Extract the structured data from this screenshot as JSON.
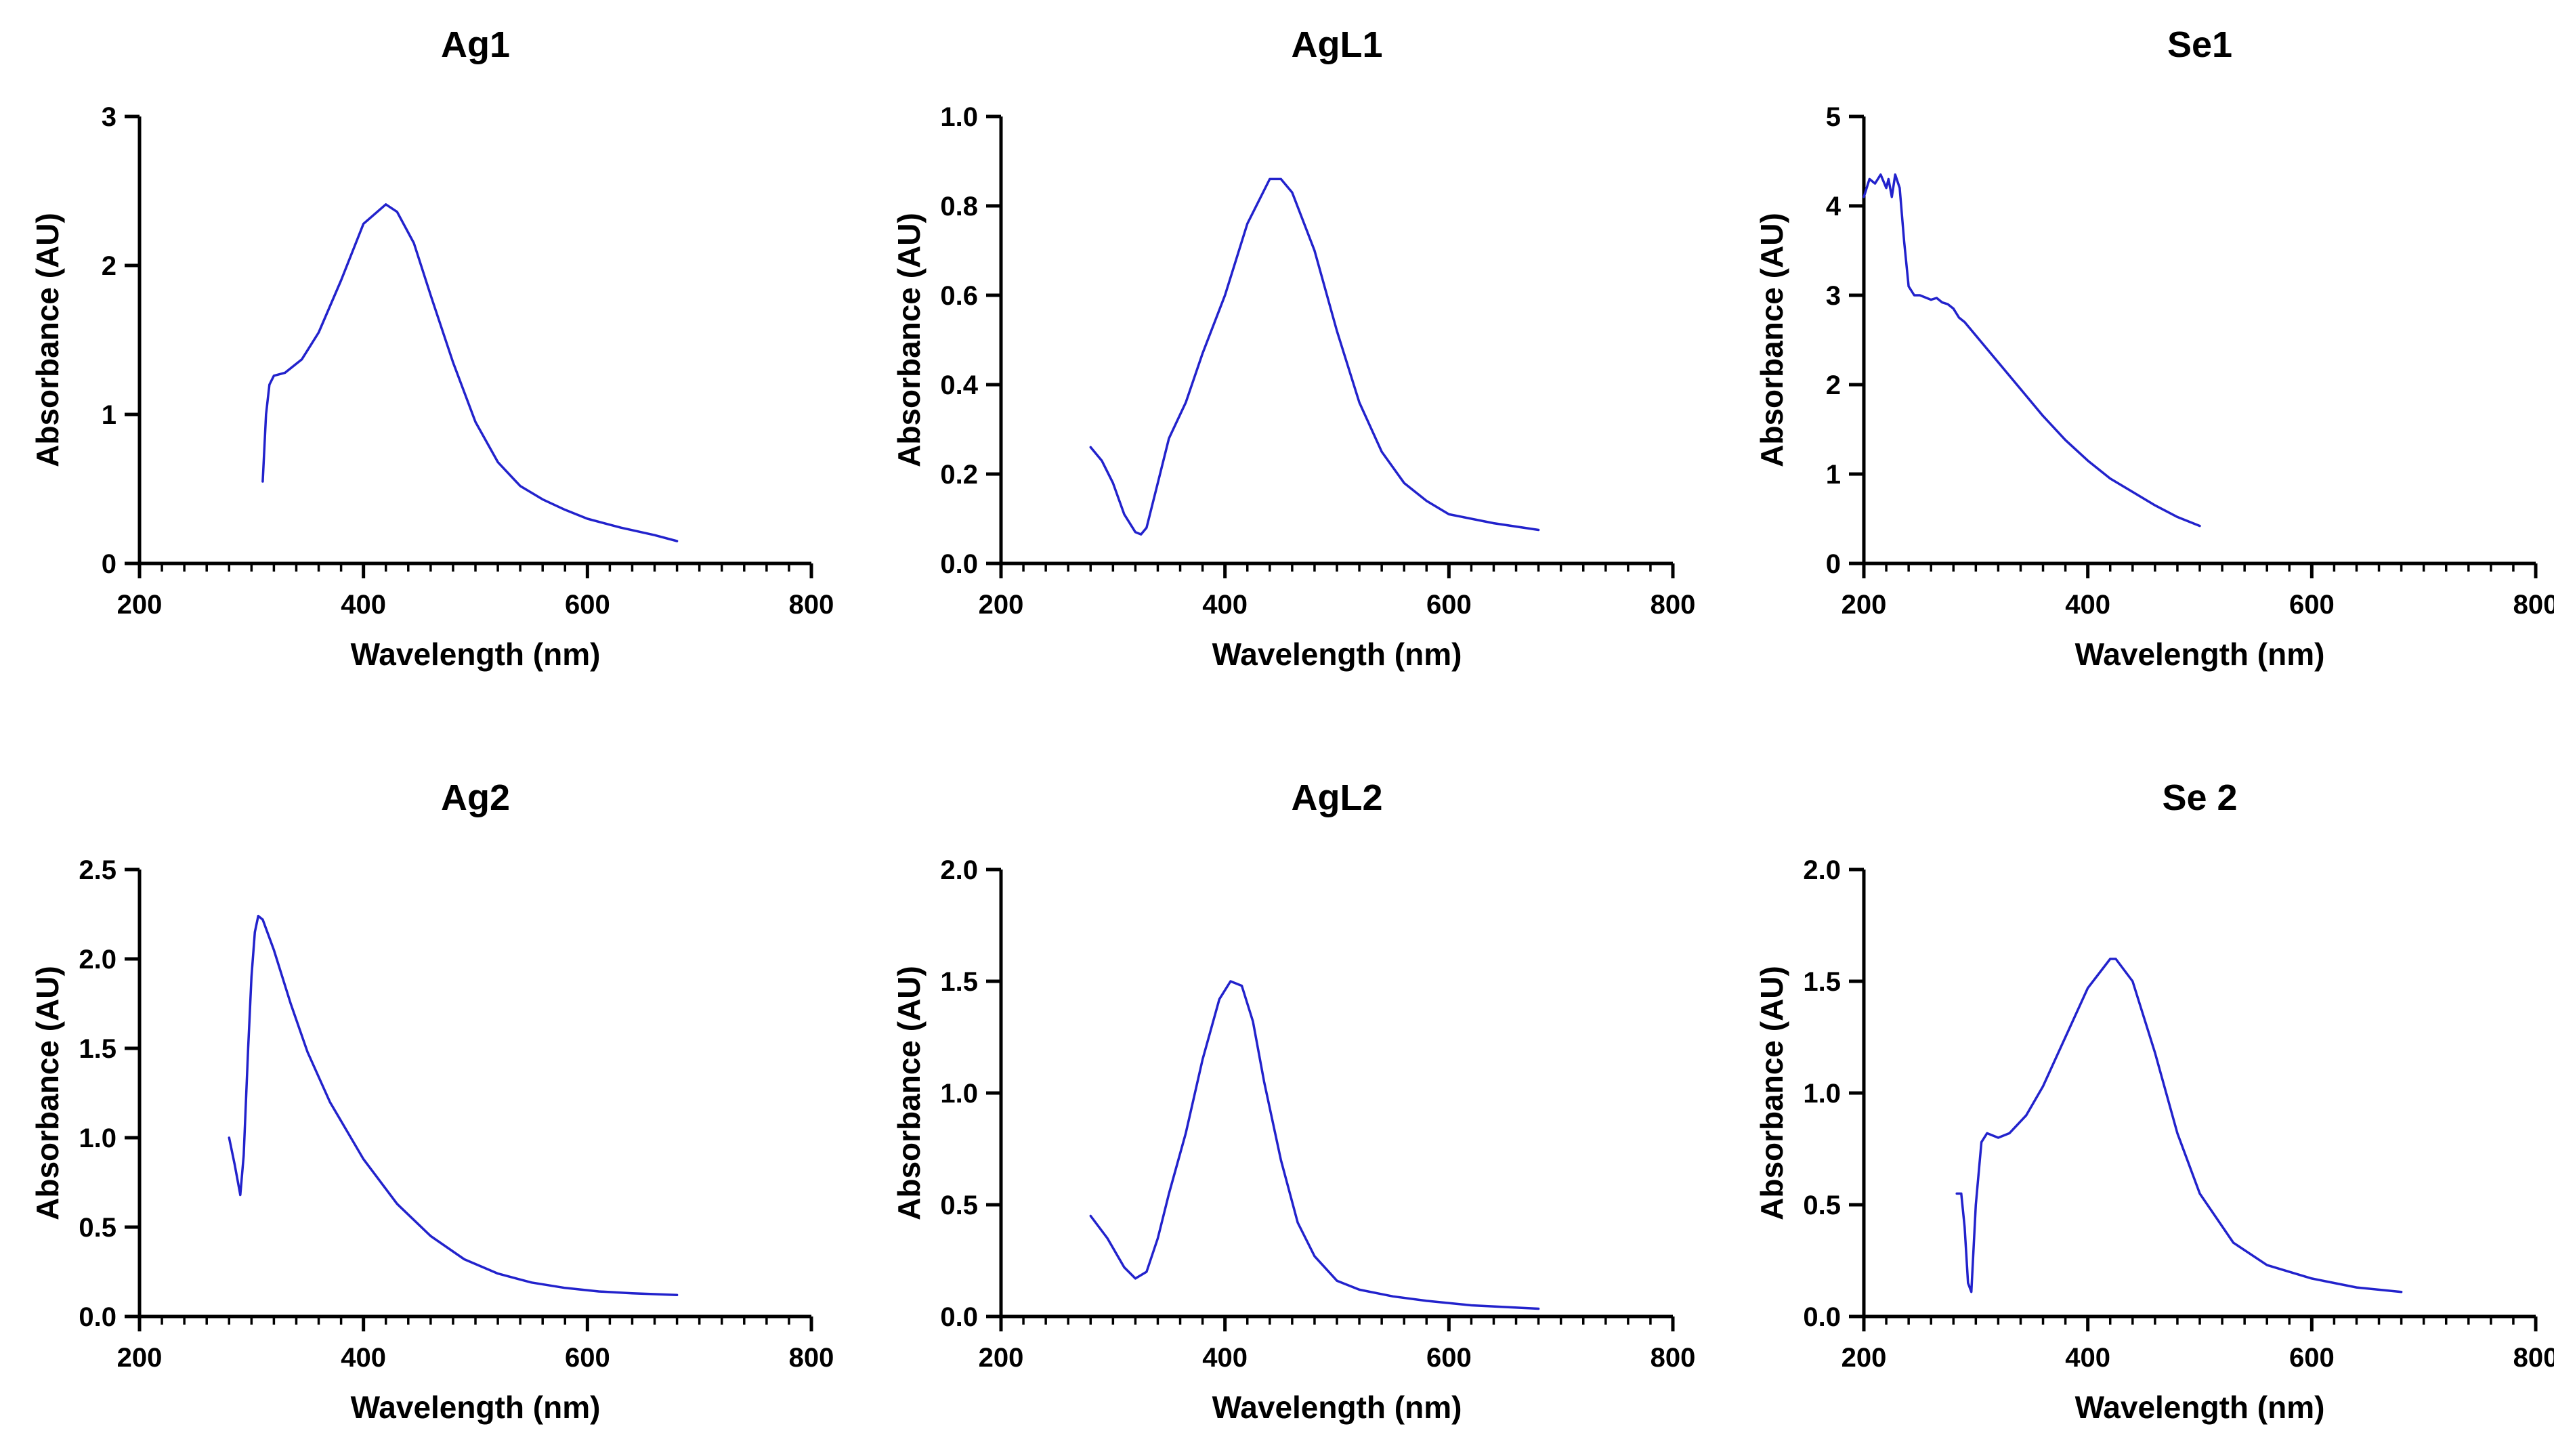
{
  "chart_data": [
    {
      "type": "line",
      "title": "Ag1",
      "xlabel": "Wavelength (nm)",
      "ylabel": "Absorbance (AU)",
      "xlim": [
        200,
        800
      ],
      "ylim": [
        0,
        3
      ],
      "xticks": [
        "200",
        "400",
        "600",
        "800"
      ],
      "yticks": [
        "0",
        "1",
        "2",
        "3"
      ],
      "color": "#2222cc",
      "series": [
        {
          "name": "Ag1",
          "x": [
            310,
            313,
            316,
            320,
            330,
            345,
            360,
            380,
            400,
            420,
            430,
            445,
            460,
            480,
            500,
            520,
            540,
            560,
            580,
            600,
            630,
            660,
            680
          ],
          "y": [
            0.55,
            1.0,
            1.2,
            1.26,
            1.28,
            1.37,
            1.55,
            1.9,
            2.28,
            2.41,
            2.36,
            2.15,
            1.8,
            1.35,
            0.95,
            0.68,
            0.52,
            0.43,
            0.36,
            0.3,
            0.24,
            0.19,
            0.15
          ]
        }
      ]
    },
    {
      "type": "line",
      "title": "AgL1",
      "xlabel": "Wavelength (nm)",
      "ylabel": "Absorbance (AU)",
      "xlim": [
        200,
        800
      ],
      "ylim": [
        0,
        1.0
      ],
      "xticks": [
        "200",
        "400",
        "600",
        "800"
      ],
      "yticks": [
        "0.0",
        "0.2",
        "0.4",
        "0.6",
        "0.8",
        "1.0"
      ],
      "color": "#2222cc",
      "series": [
        {
          "name": "AgL1",
          "x": [
            280,
            290,
            300,
            310,
            320,
            325,
            330,
            340,
            350,
            365,
            380,
            400,
            420,
            440,
            450,
            460,
            480,
            500,
            520,
            540,
            560,
            580,
            600,
            640,
            680
          ],
          "y": [
            0.26,
            0.23,
            0.18,
            0.11,
            0.07,
            0.065,
            0.08,
            0.18,
            0.28,
            0.36,
            0.47,
            0.6,
            0.76,
            0.86,
            0.86,
            0.83,
            0.7,
            0.52,
            0.36,
            0.25,
            0.18,
            0.14,
            0.11,
            0.09,
            0.075
          ]
        }
      ]
    },
    {
      "type": "line",
      "title": "Se1",
      "xlabel": "Wavelength (nm)",
      "ylabel": "Absorbance (AU)",
      "xlim": [
        200,
        800
      ],
      "ylim": [
        0,
        5
      ],
      "xticks": [
        "200",
        "400",
        "600",
        "800"
      ],
      "yticks": [
        "0",
        "1",
        "2",
        "3",
        "4",
        "5"
      ],
      "color": "#2222cc",
      "series": [
        {
          "name": "Se1",
          "x": [
            200,
            205,
            210,
            215,
            220,
            222,
            225,
            228,
            232,
            236,
            240,
            245,
            250,
            260,
            265,
            270,
            275,
            280,
            285,
            290,
            300,
            320,
            340,
            360,
            380,
            400,
            420,
            440,
            460,
            480,
            500
          ],
          "y": [
            4.1,
            4.3,
            4.25,
            4.35,
            4.2,
            4.3,
            4.1,
            4.35,
            4.2,
            3.6,
            3.1,
            3.0,
            3.0,
            2.95,
            2.97,
            2.92,
            2.9,
            2.85,
            2.75,
            2.7,
            2.55,
            2.25,
            1.95,
            1.65,
            1.38,
            1.15,
            0.95,
            0.8,
            0.65,
            0.52,
            0.42
          ]
        }
      ]
    },
    {
      "type": "line",
      "title": "Ag2",
      "xlabel": "Wavelength (nm)",
      "ylabel": "Absorbance (AU)",
      "xlim": [
        200,
        800
      ],
      "ylim": [
        0,
        2.5
      ],
      "xticks": [
        "200",
        "400",
        "600",
        "800"
      ],
      "yticks": [
        "0.0",
        "0.5",
        "1.0",
        "1.5",
        "2.0",
        "2.5"
      ],
      "color": "#2222cc",
      "series": [
        {
          "name": "Ag2",
          "x": [
            280,
            285,
            290,
            293,
            297,
            300,
            303,
            306,
            310,
            320,
            335,
            350,
            370,
            400,
            430,
            460,
            490,
            520,
            550,
            580,
            610,
            640,
            680
          ],
          "y": [
            1.0,
            0.85,
            0.68,
            0.9,
            1.5,
            1.9,
            2.15,
            2.24,
            2.22,
            2.05,
            1.75,
            1.48,
            1.2,
            0.88,
            0.63,
            0.45,
            0.32,
            0.24,
            0.19,
            0.16,
            0.14,
            0.13,
            0.12
          ]
        }
      ]
    },
    {
      "type": "line",
      "title": "AgL2",
      "xlabel": "Wavelength (nm)",
      "ylabel": "Absorbance (AU)",
      "xlim": [
        200,
        800
      ],
      "ylim": [
        0,
        2.0
      ],
      "xticks": [
        "200",
        "400",
        "600",
        "800"
      ],
      "yticks": [
        "0.0",
        "0.5",
        "1.0",
        "1.5",
        "2.0"
      ],
      "color": "#2222cc",
      "series": [
        {
          "name": "AgL2",
          "x": [
            280,
            295,
            310,
            320,
            330,
            340,
            350,
            365,
            380,
            395,
            405,
            415,
            425,
            435,
            450,
            465,
            480,
            500,
            520,
            550,
            580,
            620,
            680
          ],
          "y": [
            0.45,
            0.35,
            0.22,
            0.17,
            0.2,
            0.35,
            0.55,
            0.82,
            1.15,
            1.42,
            1.5,
            1.48,
            1.32,
            1.05,
            0.7,
            0.42,
            0.27,
            0.16,
            0.12,
            0.09,
            0.07,
            0.05,
            0.035
          ]
        }
      ]
    },
    {
      "type": "line",
      "title": "Se 2",
      "xlabel": "Wavelength (nm)",
      "ylabel": "Absorbance (AU)",
      "xlim": [
        200,
        800
      ],
      "ylim": [
        0,
        2.0
      ],
      "xticks": [
        "200",
        "400",
        "600",
        "800"
      ],
      "yticks": [
        "0.0",
        "0.5",
        "1.0",
        "1.5",
        "2.0"
      ],
      "color": "#2222cc",
      "series": [
        {
          "name": "Se 2",
          "x": [
            283,
            287,
            290,
            293,
            296,
            300,
            305,
            310,
            320,
            330,
            345,
            360,
            380,
            400,
            420,
            425,
            440,
            460,
            480,
            500,
            530,
            560,
            600,
            640,
            680
          ],
          "y": [
            0.55,
            0.55,
            0.4,
            0.15,
            0.11,
            0.5,
            0.78,
            0.82,
            0.8,
            0.82,
            0.9,
            1.03,
            1.25,
            1.47,
            1.6,
            1.6,
            1.5,
            1.18,
            0.82,
            0.55,
            0.33,
            0.23,
            0.17,
            0.13,
            0.11
          ]
        }
      ]
    }
  ]
}
